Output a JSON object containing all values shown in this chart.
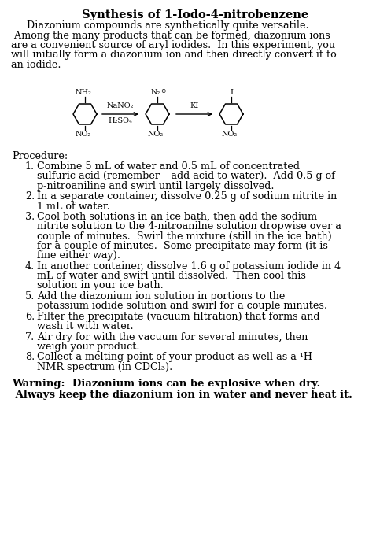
{
  "title": "Synthesis of 1-Iodo-4-nitrobenzene",
  "bg_color": "#ffffff",
  "text_color": "#000000",
  "font_size_title": 10.5,
  "font_size_body": 9.2,
  "font_size_chem": 7.0,
  "intro_lines": [
    "     Diazonium compounds are synthetically quite versatile.",
    " Among the many products that can be formed, diazonium ions",
    "are a convenient source of aryl iodides.  In this experiment, you",
    "will initially form a diazonium ion and then directly convert it to",
    "an iodide."
  ],
  "procedure_header": "Procedure:",
  "step_numbers": [
    "1.",
    "2.",
    "3.",
    "4.",
    "5.",
    "6.",
    "7.",
    "8."
  ],
  "step_texts": [
    [
      "Combine 5 mL of water and 0.5 mL of concentrated",
      "sulfuric acid (remember – add acid to water).  Add 0.5 g of",
      "p-nitroaniline and swirl until largely dissolved."
    ],
    [
      "In a separate container, dissolve 0.25 g of sodium nitrite in",
      "1 mL of water."
    ],
    [
      "Cool both solutions in an ice bath, then add the sodium",
      "nitrite solution to the 4-nitroanilne solution dropwise over a",
      "couple of minutes.  Swirl the mixture (still in the ice bath)",
      "for a couple of minutes.  Some precipitate may form (it is",
      "fine either way)."
    ],
    [
      "In another container, dissolve 1.6 g of potassium iodide in 4",
      "mL of water and swirl until dissolved.  Then cool this",
      "solution in your ice bath."
    ],
    [
      "Add the diazonium ion solution in portions to the",
      "potassium iodide solution and swirl for a couple minutes."
    ],
    [
      "Filter the precipitate (vacuum filtration) that forms and",
      "wash it with water."
    ],
    [
      "Air dry for with the vacuum for several minutes, then",
      "weigh your product."
    ],
    [
      "Collect a melting point of your product as well as a ¹H",
      "NMR spectrum (in CDCl₃)."
    ]
  ],
  "warning_lines": [
    "Warning:  Diazonium ions can be explosive when dry.",
    " Always keep the diazonium ion in water and never heat it."
  ]
}
